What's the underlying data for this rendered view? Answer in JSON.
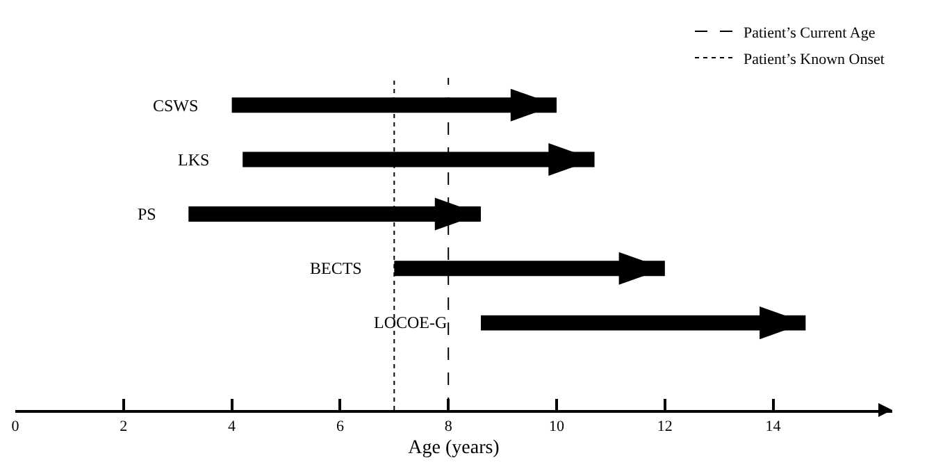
{
  "chart_data": {
    "type": "bar",
    "orientation": "horizontal",
    "xlabel": "Age (years)",
    "categories": [
      "CSWS",
      "LKS",
      "PS",
      "BECTS",
      "LOCOE-G"
    ],
    "base": [
      4,
      4.2,
      3.2,
      7,
      8.6
    ],
    "values": [
      6,
      6.5,
      5.4,
      5,
      6
    ],
    "color": "#000000",
    "xlim": [
      0,
      16.2
    ],
    "xticks": [
      0,
      2,
      4,
      6,
      8,
      10,
      12,
      14
    ],
    "tick_labels": "x",
    "grid": false,
    "legend": "top right",
    "ref_lines": [
      {
        "axis": "x",
        "value": 8,
        "label": "Patient’s Current Age",
        "line_style": "dashed",
        "color": "#000000"
      },
      {
        "axis": "x",
        "value": 7,
        "label": "Patient’s Known Onset",
        "line_style": "dotted",
        "color": "#000000"
      }
    ]
  }
}
